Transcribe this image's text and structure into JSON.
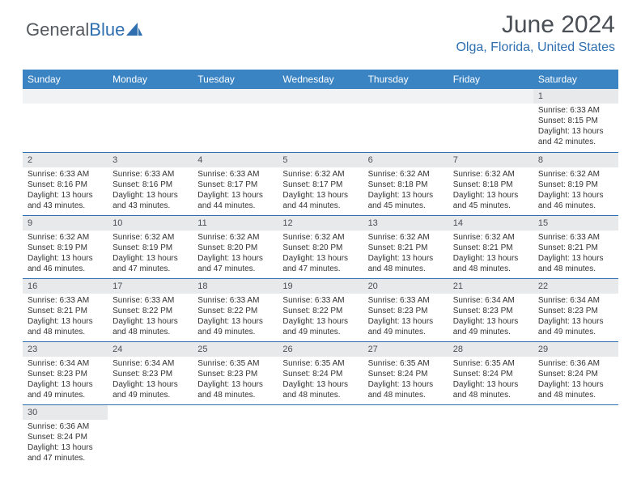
{
  "logo": {
    "part1": "General",
    "part2": "Blue"
  },
  "title": "June 2024",
  "location": "Olga, Florida, United States",
  "colors": {
    "header_bg": "#3b84c4",
    "header_text": "#ffffff",
    "accent": "#2f6fb0",
    "day_bar_bg": "#e8e9ea",
    "text": "#333333",
    "muted": "#4a4f55"
  },
  "typography": {
    "title_fontsize": 30,
    "location_fontsize": 16,
    "header_fontsize": 12,
    "cell_fontsize": 10
  },
  "day_headers": [
    "Sunday",
    "Monday",
    "Tuesday",
    "Wednesday",
    "Thursday",
    "Friday",
    "Saturday"
  ],
  "weeks": [
    [
      null,
      null,
      null,
      null,
      null,
      null,
      {
        "n": "1",
        "sr": "Sunrise: 6:33 AM",
        "ss": "Sunset: 8:15 PM",
        "d1": "Daylight: 13 hours",
        "d2": "and 42 minutes."
      }
    ],
    [
      {
        "n": "2",
        "sr": "Sunrise: 6:33 AM",
        "ss": "Sunset: 8:16 PM",
        "d1": "Daylight: 13 hours",
        "d2": "and 43 minutes."
      },
      {
        "n": "3",
        "sr": "Sunrise: 6:33 AM",
        "ss": "Sunset: 8:16 PM",
        "d1": "Daylight: 13 hours",
        "d2": "and 43 minutes."
      },
      {
        "n": "4",
        "sr": "Sunrise: 6:33 AM",
        "ss": "Sunset: 8:17 PM",
        "d1": "Daylight: 13 hours",
        "d2": "and 44 minutes."
      },
      {
        "n": "5",
        "sr": "Sunrise: 6:32 AM",
        "ss": "Sunset: 8:17 PM",
        "d1": "Daylight: 13 hours",
        "d2": "and 44 minutes."
      },
      {
        "n": "6",
        "sr": "Sunrise: 6:32 AM",
        "ss": "Sunset: 8:18 PM",
        "d1": "Daylight: 13 hours",
        "d2": "and 45 minutes."
      },
      {
        "n": "7",
        "sr": "Sunrise: 6:32 AM",
        "ss": "Sunset: 8:18 PM",
        "d1": "Daylight: 13 hours",
        "d2": "and 45 minutes."
      },
      {
        "n": "8",
        "sr": "Sunrise: 6:32 AM",
        "ss": "Sunset: 8:19 PM",
        "d1": "Daylight: 13 hours",
        "d2": "and 46 minutes."
      }
    ],
    [
      {
        "n": "9",
        "sr": "Sunrise: 6:32 AM",
        "ss": "Sunset: 8:19 PM",
        "d1": "Daylight: 13 hours",
        "d2": "and 46 minutes."
      },
      {
        "n": "10",
        "sr": "Sunrise: 6:32 AM",
        "ss": "Sunset: 8:19 PM",
        "d1": "Daylight: 13 hours",
        "d2": "and 47 minutes."
      },
      {
        "n": "11",
        "sr": "Sunrise: 6:32 AM",
        "ss": "Sunset: 8:20 PM",
        "d1": "Daylight: 13 hours",
        "d2": "and 47 minutes."
      },
      {
        "n": "12",
        "sr": "Sunrise: 6:32 AM",
        "ss": "Sunset: 8:20 PM",
        "d1": "Daylight: 13 hours",
        "d2": "and 47 minutes."
      },
      {
        "n": "13",
        "sr": "Sunrise: 6:32 AM",
        "ss": "Sunset: 8:21 PM",
        "d1": "Daylight: 13 hours",
        "d2": "and 48 minutes."
      },
      {
        "n": "14",
        "sr": "Sunrise: 6:32 AM",
        "ss": "Sunset: 8:21 PM",
        "d1": "Daylight: 13 hours",
        "d2": "and 48 minutes."
      },
      {
        "n": "15",
        "sr": "Sunrise: 6:33 AM",
        "ss": "Sunset: 8:21 PM",
        "d1": "Daylight: 13 hours",
        "d2": "and 48 minutes."
      }
    ],
    [
      {
        "n": "16",
        "sr": "Sunrise: 6:33 AM",
        "ss": "Sunset: 8:21 PM",
        "d1": "Daylight: 13 hours",
        "d2": "and 48 minutes."
      },
      {
        "n": "17",
        "sr": "Sunrise: 6:33 AM",
        "ss": "Sunset: 8:22 PM",
        "d1": "Daylight: 13 hours",
        "d2": "and 48 minutes."
      },
      {
        "n": "18",
        "sr": "Sunrise: 6:33 AM",
        "ss": "Sunset: 8:22 PM",
        "d1": "Daylight: 13 hours",
        "d2": "and 49 minutes."
      },
      {
        "n": "19",
        "sr": "Sunrise: 6:33 AM",
        "ss": "Sunset: 8:22 PM",
        "d1": "Daylight: 13 hours",
        "d2": "and 49 minutes."
      },
      {
        "n": "20",
        "sr": "Sunrise: 6:33 AM",
        "ss": "Sunset: 8:23 PM",
        "d1": "Daylight: 13 hours",
        "d2": "and 49 minutes."
      },
      {
        "n": "21",
        "sr": "Sunrise: 6:34 AM",
        "ss": "Sunset: 8:23 PM",
        "d1": "Daylight: 13 hours",
        "d2": "and 49 minutes."
      },
      {
        "n": "22",
        "sr": "Sunrise: 6:34 AM",
        "ss": "Sunset: 8:23 PM",
        "d1": "Daylight: 13 hours",
        "d2": "and 49 minutes."
      }
    ],
    [
      {
        "n": "23",
        "sr": "Sunrise: 6:34 AM",
        "ss": "Sunset: 8:23 PM",
        "d1": "Daylight: 13 hours",
        "d2": "and 49 minutes."
      },
      {
        "n": "24",
        "sr": "Sunrise: 6:34 AM",
        "ss": "Sunset: 8:23 PM",
        "d1": "Daylight: 13 hours",
        "d2": "and 49 minutes."
      },
      {
        "n": "25",
        "sr": "Sunrise: 6:35 AM",
        "ss": "Sunset: 8:23 PM",
        "d1": "Daylight: 13 hours",
        "d2": "and 48 minutes."
      },
      {
        "n": "26",
        "sr": "Sunrise: 6:35 AM",
        "ss": "Sunset: 8:24 PM",
        "d1": "Daylight: 13 hours",
        "d2": "and 48 minutes."
      },
      {
        "n": "27",
        "sr": "Sunrise: 6:35 AM",
        "ss": "Sunset: 8:24 PM",
        "d1": "Daylight: 13 hours",
        "d2": "and 48 minutes."
      },
      {
        "n": "28",
        "sr": "Sunrise: 6:35 AM",
        "ss": "Sunset: 8:24 PM",
        "d1": "Daylight: 13 hours",
        "d2": "and 48 minutes."
      },
      {
        "n": "29",
        "sr": "Sunrise: 6:36 AM",
        "ss": "Sunset: 8:24 PM",
        "d1": "Daylight: 13 hours",
        "d2": "and 48 minutes."
      }
    ],
    [
      {
        "n": "30",
        "sr": "Sunrise: 6:36 AM",
        "ss": "Sunset: 8:24 PM",
        "d1": "Daylight: 13 hours",
        "d2": "and 47 minutes."
      },
      null,
      null,
      null,
      null,
      null,
      null
    ]
  ]
}
